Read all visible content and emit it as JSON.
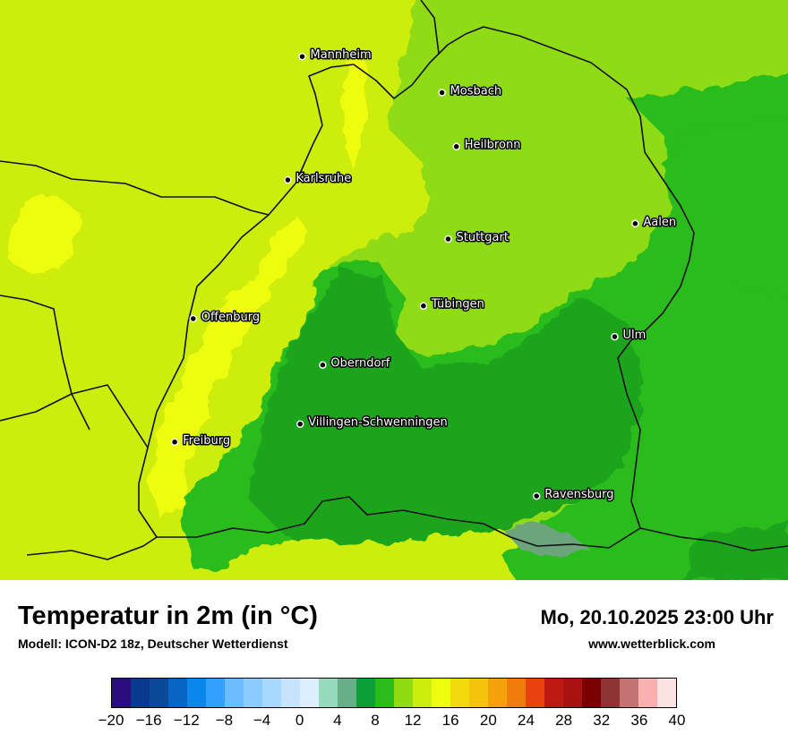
{
  "map": {
    "cities": [
      {
        "name": "Mannheim",
        "lon": 8.47,
        "lat": 49.49
      },
      {
        "name": "Mosbach",
        "lon": 9.15,
        "lat": 49.35
      },
      {
        "name": "Heilbronn",
        "lon": 9.22,
        "lat": 49.14
      },
      {
        "name": "Karlsruhe",
        "lon": 8.4,
        "lat": 49.01
      },
      {
        "name": "Stuttgart",
        "lon": 9.18,
        "lat": 48.78
      },
      {
        "name": "Aalen",
        "lon": 10.09,
        "lat": 48.84
      },
      {
        "name": "Tübingen",
        "lon": 9.06,
        "lat": 48.52
      },
      {
        "name": "Offenburg",
        "lon": 7.94,
        "lat": 48.47
      },
      {
        "name": "Ulm",
        "lon": 9.99,
        "lat": 48.4
      },
      {
        "name": "Oberndorf",
        "lon": 8.57,
        "lat": 48.29
      },
      {
        "name": "Villingen-Schwenningen",
        "lon": 8.46,
        "lat": 48.06
      },
      {
        "name": "Freiburg",
        "lon": 7.85,
        "lat": 47.99
      },
      {
        "name": "Ravensburg",
        "lon": 9.61,
        "lat": 47.78
      }
    ],
    "colors": {
      "t8_10": "#1fa51f",
      "t10_12": "#2cbb1a",
      "t12_14": "#8fdc12",
      "t14_16": "#cdee0d",
      "t16_18": "#eefc0e",
      "lake": "#6ca47c"
    }
  },
  "header": {
    "title": "Temperatur in 2m (in °C)",
    "subtitle": "Modell: ICON-D2 18z, Deutscher Wetterdienst",
    "datetime": "Mo, 20.10.2025 23:00 Uhr",
    "website": "www.wetterblick.com"
  },
  "legend": {
    "min": -20,
    "max": 40,
    "colors": [
      "#2a0e7e",
      "#0a3a8e",
      "#0a4a99",
      "#0865c4",
      "#0a87ea",
      "#33a0fb",
      "#6cbdff",
      "#8ccbff",
      "#a8d8fb",
      "#c6e5fc",
      "#ddeefd",
      "#96dabb",
      "#67af89",
      "#0d9e38",
      "#2cbb1a",
      "#8fdc12",
      "#cdee0d",
      "#eefc0e",
      "#f2da0c",
      "#f4c20a",
      "#f3a209",
      "#f27c0b",
      "#e9420f",
      "#be1a14",
      "#aa1212",
      "#780000",
      "#8f3434",
      "#c47272",
      "#fbb0b0",
      "#fde2e2"
    ],
    "ticks": [
      "−20",
      "−16",
      "−12",
      "−8",
      "−4",
      "0",
      "4",
      "8",
      "12",
      "16",
      "20",
      "24",
      "28",
      "32",
      "36",
      "40"
    ],
    "tick_values": [
      -20,
      -16,
      -12,
      -8,
      -4,
      0,
      4,
      8,
      12,
      16,
      20,
      24,
      28,
      32,
      36,
      40
    ]
  }
}
